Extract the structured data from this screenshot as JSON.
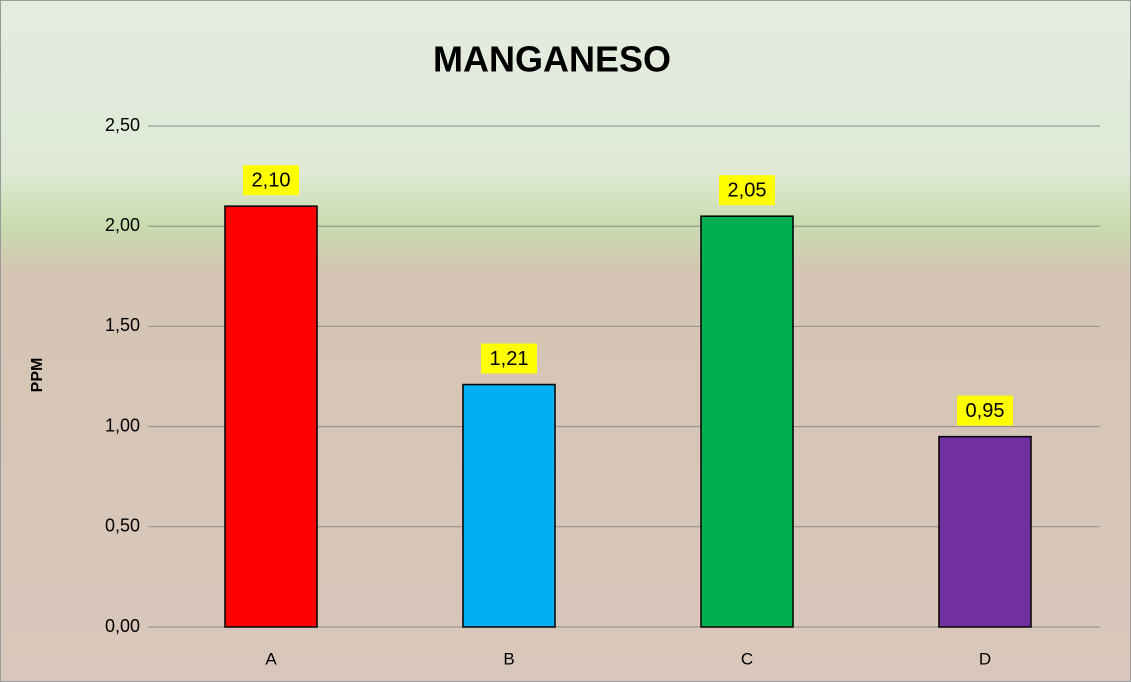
{
  "chart_data": {
    "type": "bar",
    "title": "MANGANESO",
    "y_label": "PPM",
    "categories": [
      "A",
      "B",
      "C",
      "D"
    ],
    "values": [
      2.1,
      1.21,
      2.05,
      0.95
    ],
    "value_labels": [
      "2,10",
      "1,21",
      "2,05",
      "0,95"
    ],
    "colors": [
      "#ff0000",
      "#00b0f0",
      "#00b050",
      "#7030a0"
    ],
    "ylim": [
      0,
      2.5
    ],
    "yticks": [
      {
        "value": 0,
        "label": "0,00"
      },
      {
        "value": 0.5,
        "label": "0,50"
      },
      {
        "value": 1,
        "label": "1,00"
      },
      {
        "value": 1.5,
        "label": "1,50"
      },
      {
        "value": 2,
        "label": "2,00"
      },
      {
        "value": 2.5,
        "label": "2,50"
      }
    ],
    "grid": true
  }
}
